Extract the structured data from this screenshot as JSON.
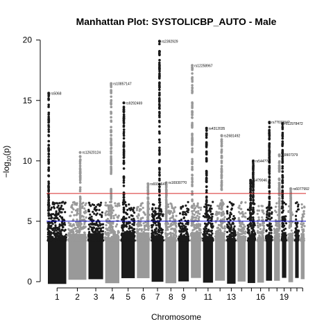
{
  "chart_data": {
    "type": "scatter",
    "title": "Manhattan Plot: SYSTOLICBP_AUTO - Male",
    "xlabel": "Chromosome",
    "ylabel_parts": {
      "prefix": "−log",
      "sub": "10",
      "suffix": "(p)"
    },
    "ylim": [
      0,
      20.5
    ],
    "yticks": [
      0,
      5,
      10,
      15,
      20
    ],
    "colors": {
      "odd": "#1a1a1a",
      "even": "#999999",
      "red_line": "#d62728",
      "blue_line": "#0000cc"
    },
    "thresholds": [
      {
        "name": "genome-wide",
        "value": 7.3,
        "color": "red"
      },
      {
        "name": "suggestive",
        "value": 5.0,
        "color": "blue"
      }
    ],
    "chromosome_ticks": [
      "1",
      "2",
      "3",
      "4",
      "5",
      "6",
      "7",
      "8",
      "9",
      "11",
      "13",
      "16",
      "19"
    ],
    "chromosomes": [
      {
        "chr": 1,
        "len": 249
      },
      {
        "chr": 2,
        "len": 243
      },
      {
        "chr": 3,
        "len": 198
      },
      {
        "chr": 4,
        "len": 191
      },
      {
        "chr": 5,
        "len": 181
      },
      {
        "chr": 6,
        "len": 171
      },
      {
        "chr": 7,
        "len": 159
      },
      {
        "chr": 8,
        "len": 146
      },
      {
        "chr": 9,
        "len": 141
      },
      {
        "chr": 10,
        "len": 136
      },
      {
        "chr": 11,
        "len": 135
      },
      {
        "chr": 12,
        "len": 133
      },
      {
        "chr": 13,
        "len": 115
      },
      {
        "chr": 14,
        "len": 107
      },
      {
        "chr": 15,
        "len": 102
      },
      {
        "chr": 16,
        "len": 90
      },
      {
        "chr": 17,
        "len": 81
      },
      {
        "chr": 18,
        "len": 78
      },
      {
        "chr": 19,
        "len": 59
      },
      {
        "chr": 20,
        "len": 63
      },
      {
        "chr": 21,
        "len": 48
      },
      {
        "chr": 22,
        "len": 51
      }
    ],
    "top_snps": [
      {
        "label": "rs5068",
        "chr": 1,
        "pos": 11,
        "p": 15.6
      },
      {
        "label": "rs12620124",
        "chr": 2,
        "pos": 160,
        "p": 10.7
      },
      {
        "label": "rs10857147",
        "chr": 4,
        "pos": 80,
        "p": 16.4
      },
      {
        "label": "rs9292469",
        "chr": 5,
        "pos": 33,
        "p": 14.8
      },
      {
        "label": "rs6934647",
        "chr": 6,
        "pos": 150,
        "p": 8.1
      },
      {
        "label": "rs2392929",
        "chr": 7,
        "pos": 106,
        "p": 19.9
      },
      {
        "label": "rs169307?0",
        "chr": 8,
        "pos": 11,
        "p": 8.2
      },
      {
        "label": "rs12258967",
        "chr": 10,
        "pos": 18,
        "p": 17.9
      },
      {
        "label": "rs4312035",
        "chr": 11,
        "pos": 47,
        "p": 12.7
      },
      {
        "label": "rs2681492",
        "chr": 12,
        "pos": 88,
        "p": 12.1
      },
      {
        "label": "rs544??4",
        "chr": 15,
        "pos": 75,
        "p": 10.0
      },
      {
        "label": "rs4?9046",
        "chr": 15,
        "pos": 40,
        "p": 8.4
      },
      {
        "label": "rs7?07004?",
        "chr": 17,
        "pos": 45,
        "p": 13.2
      },
      {
        "label": "rs12978472",
        "chr": 19,
        "pos": 8,
        "p": 13.1
      },
      {
        "label": "rs9907379",
        "chr": 18,
        "pos": 70,
        "p": 10.5
      },
      {
        "label": "rs6077992",
        "chr": 20,
        "pos": 32,
        "p": 7.7
      }
    ]
  }
}
